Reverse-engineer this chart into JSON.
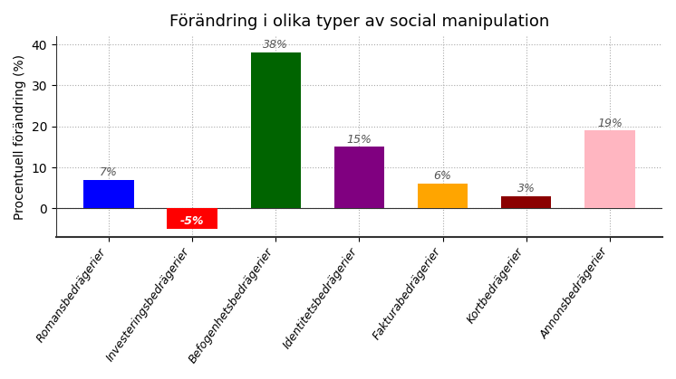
{
  "title": "Förändring i olika typer av social manipulation",
  "ylabel": "Procentuell förändring (%)",
  "categories": [
    "Romansbedrägerier",
    "Investeringsbedrägerier",
    "Befogenhetsbedrägerier",
    "Identitetsbedrägerier",
    "Fakturabedrägerier",
    "Kortbedrägerier",
    "Annonsbedrägerier"
  ],
  "values": [
    7,
    -5,
    38,
    15,
    6,
    3,
    19
  ],
  "colors": [
    "#0000ff",
    "#ff0000",
    "#006400",
    "#800080",
    "#ffa500",
    "#8b0000",
    "#ffb6c1"
  ],
  "ylim": [
    -7,
    42
  ],
  "yticks": [
    0,
    10,
    20,
    30,
    40
  ],
  "background_color": "#ffffff",
  "grid_color": "#aaaaaa",
  "label_fontsize": 9,
  "title_fontsize": 13,
  "axis_label_fontsize": 10
}
